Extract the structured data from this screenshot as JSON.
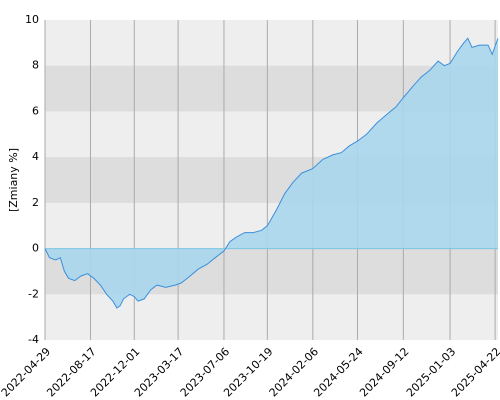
{
  "chart_data": {
    "type": "area",
    "y_label": "[Zmiany %]",
    "x": [
      "2022-04-29",
      "2022-05-10",
      "2022-05-25",
      "2022-06-05",
      "2022-06-15",
      "2022-06-25",
      "2022-07-10",
      "2022-07-25",
      "2022-08-10",
      "2022-08-25",
      "2022-09-10",
      "2022-09-25",
      "2022-10-10",
      "2022-10-20",
      "2022-10-28",
      "2022-11-05",
      "2022-11-20",
      "2022-12-01",
      "2022-12-10",
      "2022-12-25",
      "2023-01-10",
      "2023-01-25",
      "2023-02-15",
      "2023-03-10",
      "2023-03-25",
      "2023-04-15",
      "2023-05-05",
      "2023-05-25",
      "2023-06-15",
      "2023-07-06",
      "2023-07-20",
      "2023-08-05",
      "2023-08-25",
      "2023-09-15",
      "2023-10-05",
      "2023-10-19",
      "2023-11-10",
      "2023-11-30",
      "2023-12-20",
      "2024-01-10",
      "2024-02-06",
      "2024-03-01",
      "2024-03-25",
      "2024-04-15",
      "2024-05-05",
      "2024-05-24",
      "2024-06-15",
      "2024-07-10",
      "2024-08-05",
      "2024-08-25",
      "2024-09-12",
      "2024-10-05",
      "2024-10-25",
      "2024-11-15",
      "2024-12-05",
      "2024-12-20",
      "2025-01-03",
      "2025-01-20",
      "2025-02-05",
      "2025-02-15",
      "2025-02-25",
      "2025-03-15",
      "2025-04-05",
      "2025-04-15",
      "2025-04-29"
    ],
    "series": [
      {
        "color": "#3b8fdc",
        "fill": "#a9d6ec",
        "values": [
          0,
          -0.4,
          -0.5,
          -0.4,
          -1.0,
          -1.3,
          -1.4,
          -1.2,
          -1.1,
          -1.3,
          -1.6,
          -2.0,
          -2.3,
          -2.6,
          -2.5,
          -2.2,
          -2.0,
          -2.1,
          -2.3,
          -2.2,
          -1.8,
          -1.6,
          -1.7,
          -1.6,
          -1.5,
          -1.2,
          -0.9,
          -0.7,
          -0.4,
          -0.1,
          0.3,
          0.5,
          0.7,
          0.7,
          0.8,
          1.0,
          1.7,
          2.4,
          2.9,
          3.3,
          3.5,
          3.9,
          4.1,
          4.2,
          4.5,
          4.7,
          5.0,
          5.5,
          5.9,
          6.2,
          6.6,
          7.1,
          7.5,
          7.8,
          8.2,
          8.0,
          8.1,
          8.6,
          9.0,
          9.2,
          8.8,
          8.9,
          8.9,
          8.5,
          9.2
        ]
      }
    ],
    "xlim": [
      "2022-04-29",
      "2025-04-29"
    ],
    "xticks": [
      "2022-04-29",
      "2022-08-17",
      "2022-12-01",
      "2023-03-17",
      "2023-07-06",
      "2023-10-19",
      "2024-02-06",
      "2024-05-24",
      "2024-09-12",
      "2025-01-03",
      "2025-04-22"
    ],
    "ylim": [
      -4,
      10
    ],
    "yticks": [
      -4,
      -2,
      0,
      2,
      4,
      6,
      8,
      10
    ],
    "grid": true
  }
}
